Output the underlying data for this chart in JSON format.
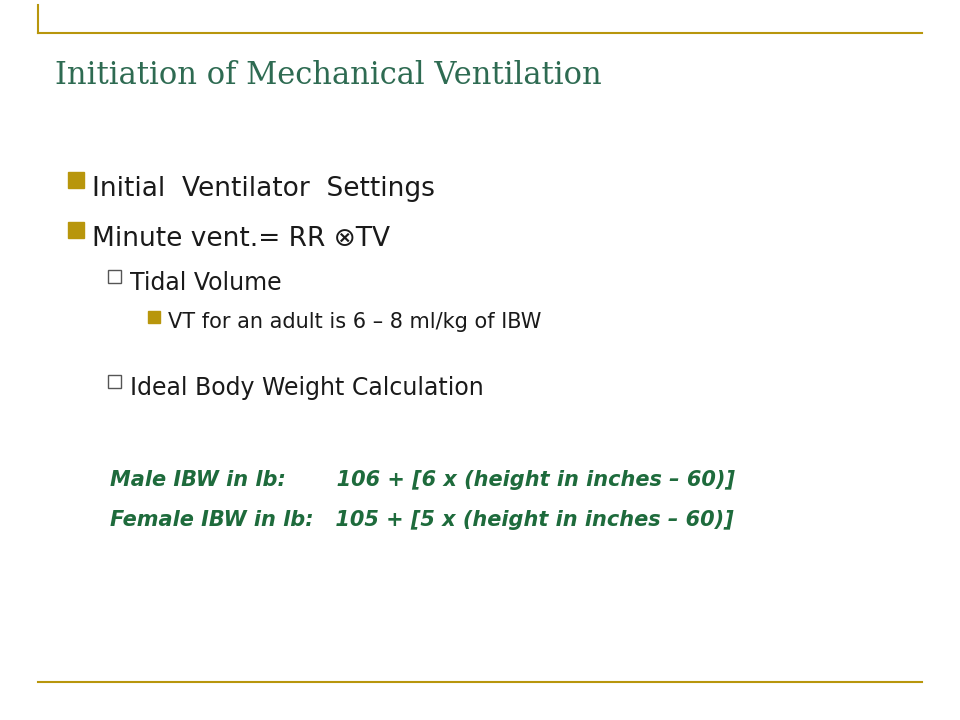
{
  "title": "Initiation of Mechanical Ventilation",
  "title_color": "#2E6B52",
  "title_fontsize": 22,
  "background_color": "#FFFFFF",
  "border_color": "#B8960C",
  "bullet_color": "#B8960C",
  "text_color": "#1a1a1a",
  "green_text_color": "#1E6B3C",
  "bullet1": "Initial  Ventilator  Settings",
  "bullet2": "Minute vent.= RR ⊗TV",
  "sub1": "Tidal Volume",
  "sub1_sub1": "VT for an adult is 6 – 8 ml/kg of IBW",
  "sub2": "Ideal Body Weight Calculation",
  "formula1": "Male IBW in lb:       106 + [6 x (height in inches – 60)]",
  "formula2": "Female IBW in lb:   105 + [5 x (height in inches – 60)]",
  "main_bullet_fontsize": 19,
  "sub_bullet_fontsize": 17,
  "sub_sub_bullet_fontsize": 15,
  "formula_fontsize": 15
}
